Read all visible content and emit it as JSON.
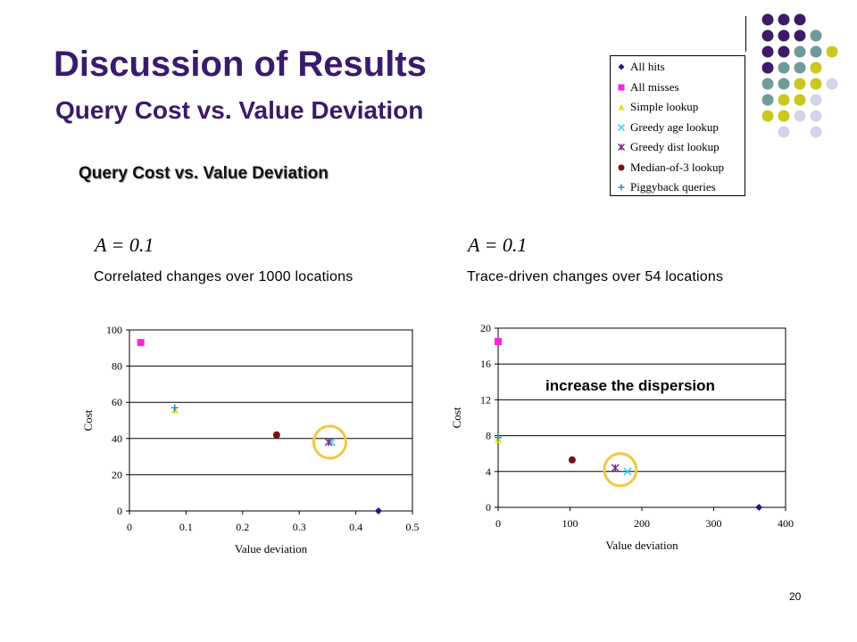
{
  "slide": {
    "title": "Discussion of Results",
    "subtitle": "Query Cost vs. Value Deviation",
    "section_title": "Query Cost vs. Value Deviation",
    "page_number": "20",
    "annotation": "increase the dispersion"
  },
  "legend": {
    "items": [
      {
        "label": "All hits",
        "marker": "diamond",
        "color": "#1b1a8c"
      },
      {
        "label": "All misses",
        "marker": "square",
        "color": "#ff22dd"
      },
      {
        "label": "Simple lookup",
        "marker": "triangle",
        "color": "#e6e600"
      },
      {
        "label": "Greedy age lookup",
        "marker": "x",
        "color": "#33ccee"
      },
      {
        "label": "Greedy dist lookup",
        "marker": "asterisk",
        "color": "#7a2a8a"
      },
      {
        "label": "Median-of-3 lookup",
        "marker": "circle",
        "color": "#7a1010"
      },
      {
        "label": "Piggyback queries",
        "marker": "plus",
        "color": "#2a8ac0"
      }
    ]
  },
  "chart_data": [
    {
      "type": "scatter",
      "param": "A = 0.1",
      "caption": "Correlated changes over 1000 locations",
      "xlabel": "Value deviation",
      "ylabel": "Cost",
      "xlim": [
        0,
        0.5
      ],
      "ylim": [
        0,
        100
      ],
      "xticks": [
        "0",
        "0.1",
        "0.2",
        "0.3",
        "0.4",
        "0.5"
      ],
      "yticks": [
        "0",
        "20",
        "40",
        "60",
        "80",
        "100"
      ],
      "grid": "horizontal",
      "series": [
        {
          "name": "All hits",
          "x": 0.44,
          "y": 0
        },
        {
          "name": "All misses",
          "x": 0.02,
          "y": 93
        },
        {
          "name": "Simple lookup",
          "x": 0.08,
          "y": 56
        },
        {
          "name": "Greedy age lookup",
          "x": 0.357,
          "y": 38
        },
        {
          "name": "Greedy dist lookup",
          "x": 0.352,
          "y": 38
        },
        {
          "name": "Median-of-3 lookup",
          "x": 0.26,
          "y": 42
        },
        {
          "name": "Piggyback queries",
          "x": 0.08,
          "y": 57
        }
      ],
      "highlight": {
        "x": 0.354,
        "y": 38
      }
    },
    {
      "type": "scatter",
      "param": "A = 0.1",
      "caption": "Trace-driven changes over 54 locations",
      "xlabel": "Value deviation",
      "ylabel": "Cost",
      "xlim": [
        0,
        400
      ],
      "ylim": [
        0,
        20
      ],
      "xticks": [
        "0",
        "100",
        "200",
        "300",
        "400"
      ],
      "yticks": [
        "0",
        "4",
        "8",
        "12",
        "16",
        "20"
      ],
      "grid": "horizontal",
      "series": [
        {
          "name": "All hits",
          "x": 363,
          "y": 0
        },
        {
          "name": "All misses",
          "x": 0,
          "y": 18.5
        },
        {
          "name": "Simple lookup",
          "x": 0,
          "y": 7.6
        },
        {
          "name": "Greedy age lookup",
          "x": 180,
          "y": 4
        },
        {
          "name": "Greedy dist lookup",
          "x": 163,
          "y": 4.4
        },
        {
          "name": "Median-of-3 lookup",
          "x": 103,
          "y": 5.3
        },
        {
          "name": "Piggyback queries",
          "x": 0,
          "y": 7.8
        }
      ],
      "highlight": {
        "x": 170,
        "y": 4.2
      }
    }
  ]
}
